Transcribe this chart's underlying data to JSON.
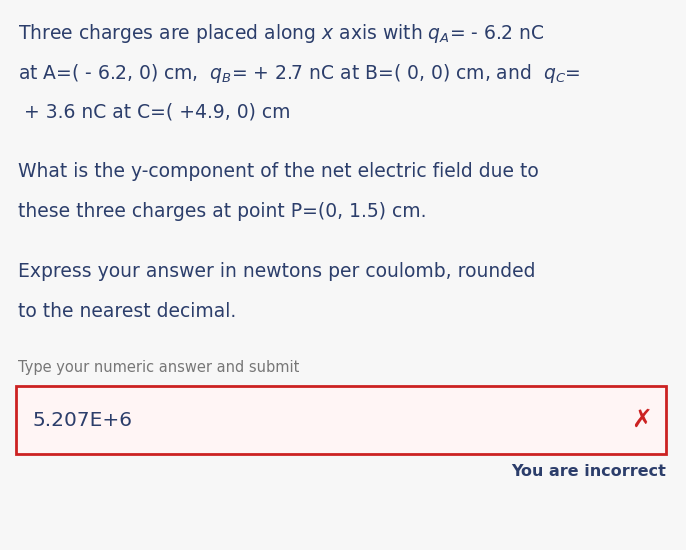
{
  "bg_color": "#f7f7f7",
  "text_color": "#2c3e6b",
  "label_color": "#777777",
  "box_bg": "#fff5f5",
  "box_border": "#cc2222",
  "x_color": "#cc2222",
  "lines_para1": [
    "Three charges are placed along $\\it{x}$ axis with $q_A$= - 6.2 nC",
    "at A=( - 6.2, 0) cm,  $q_B$= + 2.7 nC at B=( 0, 0) cm, and  $q_C$=",
    " + 3.6 nC at C=( +4.9, 0) cm"
  ],
  "lines_para2": [
    "What is the y-component of the net electric field due to",
    "these three charges at point P=(0, 1.5) cm."
  ],
  "lines_para3": [
    "Express your answer in newtons per coulomb, rounded",
    "to the nearest decimal."
  ],
  "label_submit": "Type your numeric answer and submit",
  "answer_text": "5.207E+6",
  "incorrect_text": "You are incorrect",
  "font_size_main": 13.5,
  "font_size_label": 10.5,
  "font_size_answer": 14.5,
  "font_size_incorrect": 11.5,
  "font_size_x": 18
}
